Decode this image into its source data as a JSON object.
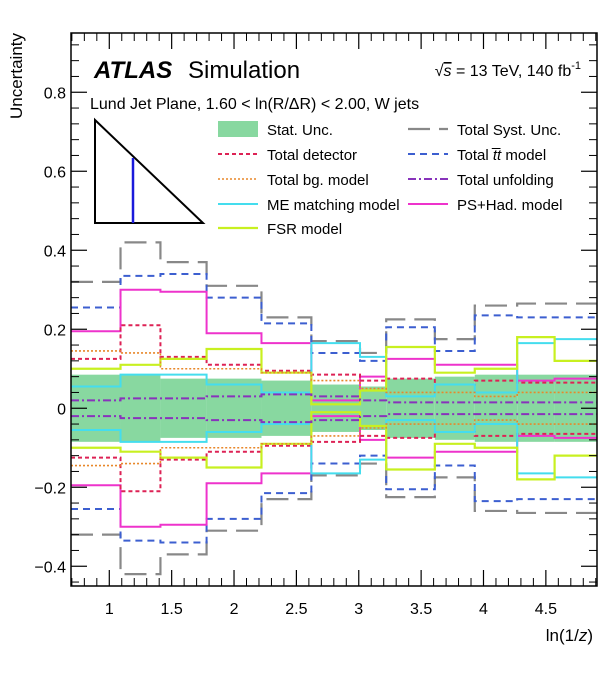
{
  "chart_data": {
    "type": "line",
    "step": true,
    "header": {
      "atlas": "ATLAS",
      "simulation": "Simulation",
      "energy_prefix": "√",
      "energy_var": "s",
      "energy_text": " = 13 TeV, 140 fb",
      "energy_sup": "-1",
      "selection": "Lund Jet Plane, 1.60 < ln(R/ΔR) < 2.00, W jets"
    },
    "xlabel": "ln(1/z)",
    "ylabel": "Uncertainty",
    "xlim": [
      0.693,
      4.91
    ],
    "ylim": [
      -0.45,
      0.95
    ],
    "x_ticks": [
      1,
      1.5,
      2,
      2.5,
      3,
      3.5,
      4,
      4.5
    ],
    "x_tick_labels": [
      "1",
      "1.5",
      "2",
      "2.5",
      "3",
      "3.5",
      "4",
      "4.5"
    ],
    "y_ticks": [
      -0.4,
      -0.2,
      0,
      0.2,
      0.4,
      0.6,
      0.8
    ],
    "y_tick_labels": [
      "−0.4",
      "−0.2",
      "0",
      "0.2",
      "0.4",
      "0.6",
      "0.8"
    ],
    "bin_edges": [
      0.693,
      1.09,
      1.41,
      1.78,
      2.22,
      2.62,
      3.01,
      3.22,
      3.61,
      3.93,
      4.27,
      4.57,
      4.91
    ],
    "stat_band": [
      0.085,
      0.085,
      0.075,
      0.075,
      0.07,
      0.06,
      0.055,
      0.075,
      0.08,
      0.085,
      0.085,
      0.085
    ],
    "series": [
      {
        "name": "Total Syst. Unc.",
        "color": "#888888",
        "dash": "22,9",
        "width": 2.2,
        "symmetric": true,
        "values": [
          0.32,
          0.42,
          0.37,
          0.31,
          0.23,
          0.17,
          0.14,
          0.225,
          0.175,
          0.26,
          0.265,
          0.265
        ]
      },
      {
        "name": "Total t̄t model",
        "color": "#3c5fd0",
        "dash": "7,5",
        "width": 2,
        "symmetric": true,
        "values": [
          0.255,
          0.335,
          0.34,
          0.28,
          0.215,
          0.14,
          0.12,
          0.205,
          0.145,
          0.235,
          0.23,
          0.23
        ]
      },
      {
        "name": "PS+Had. model",
        "color": "#ee33cc",
        "dash": "",
        "width": 2,
        "symmetric": true,
        "values": [
          0.195,
          0.3,
          0.295,
          0.19,
          0.165,
          0.02,
          0.08,
          0.125,
          0.11,
          0.11,
          0.07,
          0.075
        ]
      },
      {
        "name": "Total detector",
        "color": "#dd2255",
        "dash": "4,3",
        "width": 2,
        "symmetric": true,
        "values": [
          0.125,
          0.21,
          0.13,
          0.11,
          0.095,
          0.085,
          0.07,
          0.075,
          0.06,
          0.07,
          0.065,
          0.065
        ]
      },
      {
        "name": "ME matching model",
        "color": "#44ddee",
        "dash": "",
        "width": 2,
        "symmetric": true,
        "values": [
          0.055,
          0.085,
          0.085,
          0.06,
          0.04,
          0.165,
          0.13,
          0.03,
          0.06,
          0.04,
          0.165,
          0.175
        ]
      },
      {
        "name": "FSR model",
        "color": "#c8f020",
        "dash": "",
        "width": 2.2,
        "symmetric": true,
        "values": [
          0.1,
          0.11,
          0.125,
          0.15,
          0.09,
          0.01,
          0.045,
          0.155,
          0.09,
          0.1,
          0.18,
          0.12
        ]
      },
      {
        "name": "Total bg. model",
        "color": "#e8872a",
        "dash": "2,2",
        "width": 1.6,
        "symmetric": true,
        "values": [
          0.145,
          0.14,
          0.1,
          0.1,
          0.09,
          0.07,
          0.05,
          0.04,
          0.04,
          0.03,
          0.04,
          0.04
        ]
      },
      {
        "name": "Total unfolding",
        "color": "#8833bb",
        "dash": "8,3,2,3",
        "width": 2,
        "symmetric": true,
        "values": [
          0.02,
          0.025,
          0.025,
          0.03,
          0.035,
          0.03,
          0.02,
          0.015,
          0.015,
          0.015,
          0.015,
          0.015
        ]
      }
    ],
    "legend": [
      {
        "label": "Stat. Unc.",
        "kind": "band"
      },
      {
        "label": "Total Syst. Unc.",
        "series": 0
      },
      {
        "label": "Total detector",
        "series": 3
      },
      {
        "label": "Total t̄t model",
        "series": 1,
        "rich": true
      },
      {
        "label": "Total bg. model",
        "series": 6
      },
      {
        "label": "Total unfolding",
        "series": 7
      },
      {
        "label": "ME matching model",
        "series": 4
      },
      {
        "label": "PS+Had. model",
        "series": 2
      },
      {
        "label": "FSR model",
        "series": 5
      }
    ],
    "colors": {
      "stat_band": "#88d8a0",
      "frame": "#000000",
      "inset_line": "#1a1adb"
    },
    "grid": false,
    "legend_placement": "top"
  }
}
